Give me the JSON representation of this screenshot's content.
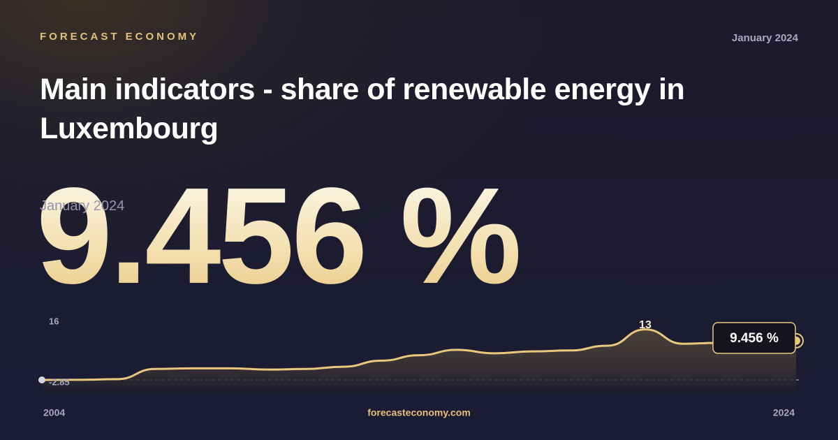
{
  "brand": "FORECAST ECONOMY",
  "date": "January 2024",
  "title": "Main indicators - share of renewable energy in Luxembourg",
  "footer": "forecasteconomy.com",
  "chart_data": {
    "type": "line",
    "x": [
      2004,
      2005,
      2006,
      2007,
      2008,
      2009,
      2010,
      2011,
      2012,
      2013,
      2014,
      2015,
      2016,
      2017,
      2018,
      2019,
      2020,
      2021,
      2022,
      2023,
      2024
    ],
    "values": [
      -2.85,
      -2.8,
      -2.6,
      0.6,
      0.8,
      0.8,
      0.4,
      0.6,
      1.3,
      3.2,
      4.9,
      6.6,
      5.5,
      6.1,
      6.4,
      7.9,
      13,
      8.5,
      8.8,
      9.3,
      9.456
    ],
    "value_labels": [
      null,
      null,
      null,
      null,
      null,
      null,
      null,
      null,
      null,
      null,
      null,
      null,
      null,
      null,
      null,
      null,
      null,
      null,
      null,
      null,
      "9.456 %"
    ],
    "color": "#e9c77d",
    "xlim": [
      2004,
      2024
    ],
    "xticks": [
      2004,
      2024
    ],
    "ylim": [
      -2.85,
      16
    ],
    "yticks": [
      16
    ]
  }
}
